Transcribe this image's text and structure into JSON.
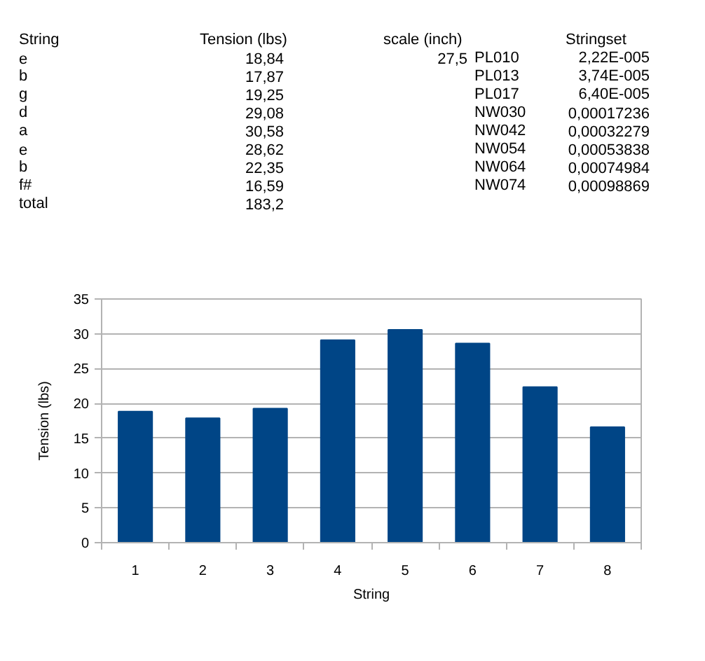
{
  "chart_data": {
    "type": "bar",
    "categories": [
      "1",
      "2",
      "3",
      "4",
      "5",
      "6",
      "7",
      "8"
    ],
    "values": [
      18.84,
      17.87,
      19.25,
      29.08,
      30.58,
      28.62,
      22.35,
      16.59
    ],
    "color": "#004586",
    "xlabel": "String",
    "ylabel": "Tension (lbs)",
    "ylim": [
      0,
      35
    ],
    "yticks": [
      0,
      5,
      10,
      15,
      20,
      25,
      30,
      35
    ],
    "grid": "y",
    "annotations": [
      "String",
      "e",
      "b",
      "g",
      "d",
      "a",
      "e",
      "b",
      "f#",
      "total",
      "Tension (lbs)",
      "18,84",
      "17,87",
      "19,25",
      "29,08",
      "30,58",
      "28,62",
      "22,35",
      "16,59",
      "183,2",
      "scale (inch)",
      "27,5",
      "PL010",
      "PL013",
      "PL017",
      "NW030",
      "NW042",
      "NW054",
      "NW064",
      "NW074",
      "Stringset",
      "2,22E-005",
      "3,74E-005",
      "6,40E-005",
      "0,00017236",
      "0,00032279",
      "0,00053838",
      "0,00074984",
      "0,00098869"
    ]
  }
}
